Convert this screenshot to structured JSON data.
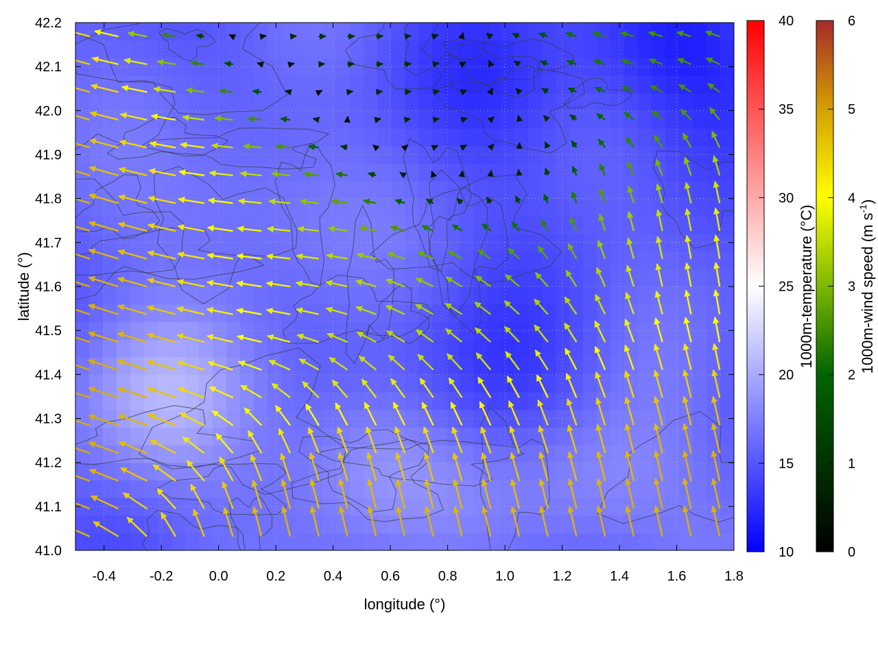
{
  "chart_data": {
    "type": "heatmap",
    "title": "",
    "xlabel": "longitude (°)",
    "ylabel": "latitude (°)",
    "xlim": [
      -0.5,
      1.8
    ],
    "ylim": [
      41.0,
      42.2
    ],
    "x_ticks": [
      "-0.4",
      "-0.2",
      "0.0",
      "0.2",
      "0.4",
      "0.6",
      "0.8",
      "1.0",
      "1.2",
      "1.4",
      "1.6",
      "1.8"
    ],
    "y_ticks": [
      "41.0",
      "41.1",
      "41.2",
      "41.3",
      "41.4",
      "41.5",
      "41.6",
      "41.7",
      "41.8",
      "41.9",
      "42.0",
      "42.1",
      "42.2"
    ],
    "grid": true,
    "temperature_colorbar": {
      "label": "1000m-temperature (°C)",
      "range": [
        10,
        40
      ],
      "ticks": [
        "10",
        "15",
        "20",
        "25",
        "30",
        "35",
        "40"
      ],
      "colors": [
        "#0000ff",
        "#ffffff",
        "#ff0000"
      ]
    },
    "wind_colorbar": {
      "label": "1000m-wind speed (m s-1)",
      "label_base": "1000m-wind speed (m s",
      "label_sup": "-1",
      "label_end": ")",
      "range": [
        0,
        6
      ],
      "ticks": [
        "0",
        "1",
        "2",
        "3",
        "4",
        "5",
        "6"
      ],
      "colors": [
        "#000000",
        "#006400",
        "#7cb800",
        "#ffff00",
        "#d4a000",
        "#a52a2a"
      ]
    },
    "temperature_field": {
      "note_values_degC": "approximate",
      "base": 15.5,
      "warm_spots": [
        {
          "lon": -0.2,
          "lat": 41.35,
          "temp": 19.5
        },
        {
          "lon": 0.5,
          "lat": 41.2,
          "temp": 19
        },
        {
          "lon": 1.3,
          "lat": 41.15,
          "temp": 19
        },
        {
          "lon": 0.1,
          "lat": 41.8,
          "temp": 18
        }
      ],
      "cold_spots": [
        {
          "lon": 1.6,
          "lat": 42.15,
          "temp": 12
        },
        {
          "lon": 0.95,
          "lat": 41.35,
          "temp": 13
        },
        {
          "lon": 1.0,
          "lat": 42.05,
          "temp": 13.5
        }
      ]
    },
    "wind_field": {
      "regions": [
        {
          "lon": -0.4,
          "lat": 41.5,
          "u": -4.5,
          "v": 1.5
        },
        {
          "lon": 0.3,
          "lat": 41.6,
          "u": -3.5,
          "v": 0.2
        },
        {
          "lon": 0.6,
          "lat": 41.15,
          "u": -1.0,
          "v": 4.5
        },
        {
          "lon": 1.3,
          "lat": 41.2,
          "u": -1.0,
          "v": 4.5
        },
        {
          "lon": 1.7,
          "lat": 41.7,
          "u": -0.5,
          "v": 3.5
        },
        {
          "lon": 0.9,
          "lat": 41.95,
          "u": 1.0,
          "v": 0.0
        },
        {
          "lon": 1.4,
          "lat": 42.1,
          "u": -2.0,
          "v": 0.5
        },
        {
          "lon": 0.9,
          "lat": 41.5,
          "u": -2.5,
          "v": 1.5
        }
      ]
    }
  }
}
